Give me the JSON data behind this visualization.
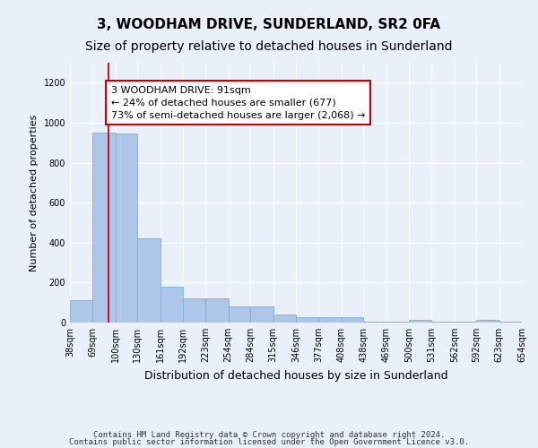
{
  "title": "3, WOODHAM DRIVE, SUNDERLAND, SR2 0FA",
  "subtitle": "Size of property relative to detached houses in Sunderland",
  "xlabel": "Distribution of detached houses by size in Sunderland",
  "ylabel": "Number of detached properties",
  "bin_edges": [
    38,
    69,
    100,
    130,
    161,
    192,
    223,
    254,
    284,
    315,
    346,
    377,
    408,
    438,
    469,
    500,
    531,
    562,
    592,
    623,
    654
  ],
  "bar_heights": [
    110,
    950,
    945,
    420,
    180,
    120,
    120,
    80,
    80,
    40,
    25,
    25,
    25,
    5,
    5,
    15,
    5,
    5,
    15,
    5
  ],
  "bar_color": "#aec6e8",
  "bar_edge_color": "#7aafd4",
  "property_sqm": 91,
  "red_line_color": "#cc0000",
  "annotation_text": "3 WOODHAM DRIVE: 91sqm\n← 24% of detached houses are smaller (677)\n73% of semi-detached houses are larger (2,068) →",
  "annotation_box_color": "#ffffff",
  "annotation_border_color": "#cc0000",
  "ylim": [
    0,
    1300
  ],
  "yticks": [
    0,
    200,
    400,
    600,
    800,
    1000,
    1200
  ],
  "footer_line1": "Contains HM Land Registry data © Crown copyright and database right 2024.",
  "footer_line2": "Contains public sector information licensed under the Open Government Licence v3.0.",
  "bg_color": "#eaf0fa",
  "plot_bg_color": "#eaf0fa",
  "grid_color": "#ffffff",
  "title_fontsize": 11,
  "subtitle_fontsize": 10,
  "ylabel_fontsize": 8,
  "xlabel_fontsize": 9,
  "tick_fontsize": 7,
  "annotation_fontsize": 8,
  "footer_fontsize": 6.5
}
